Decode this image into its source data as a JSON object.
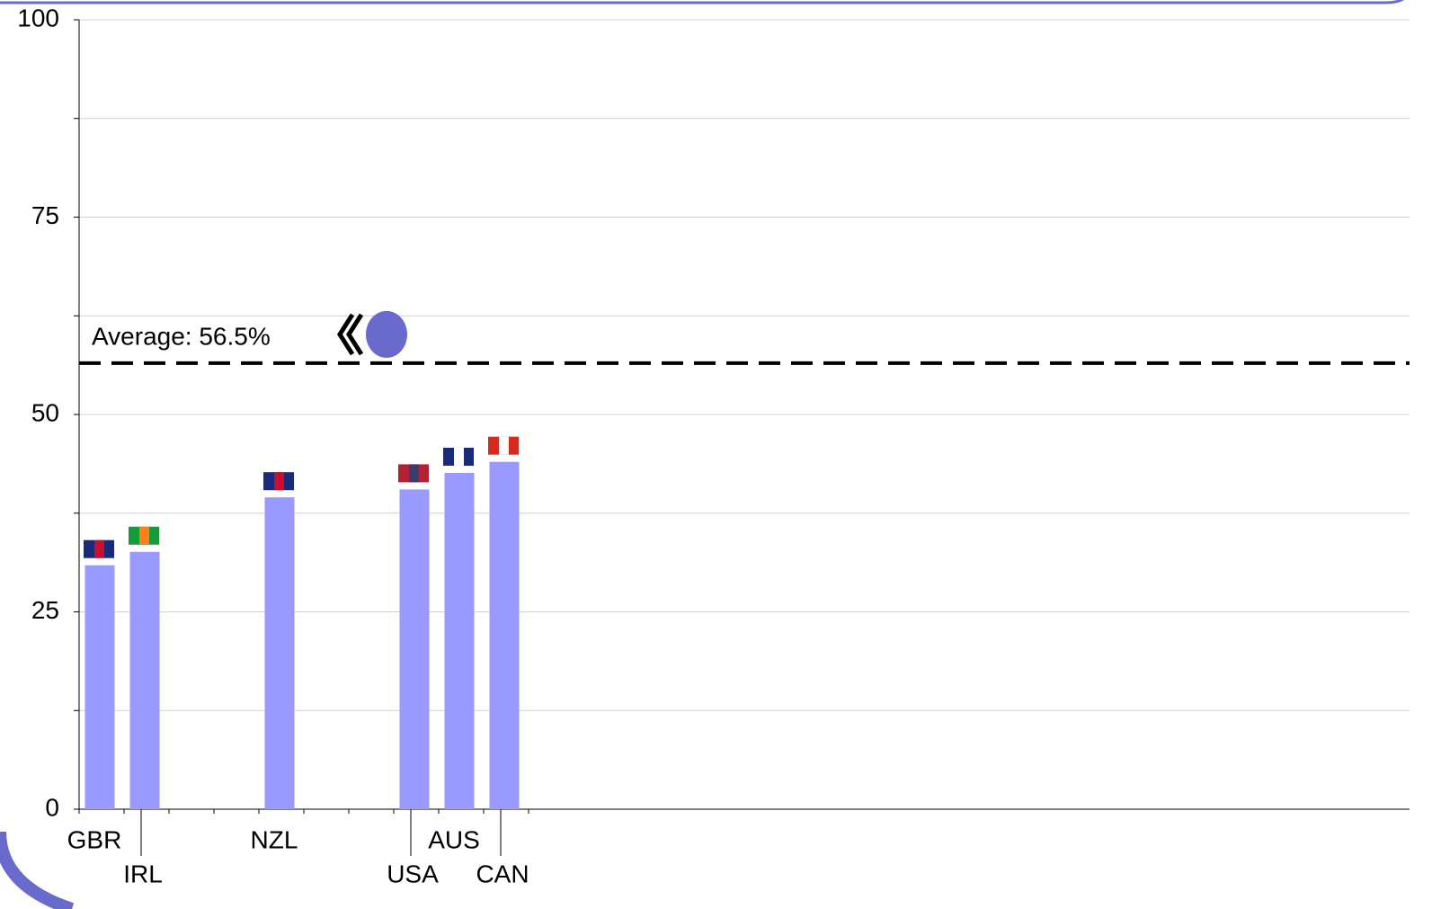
{
  "chart_data": {
    "type": "bar",
    "categories": [
      "GBR",
      "IRL",
      null,
      null,
      "NZL",
      null,
      null,
      "USA",
      "AUS",
      "CAN"
    ],
    "values": [
      30.9,
      32.6,
      null,
      null,
      39.5,
      null,
      null,
      40.5,
      42.6,
      44.0
    ],
    "color": "#9999ff",
    "ylim": [
      0,
      100
    ],
    "yticks": [
      0,
      25,
      50,
      75,
      100
    ],
    "minor_yticks": [
      12.5,
      37.5,
      62.5,
      87.5
    ],
    "grid": true,
    "average": {
      "value": 56.5,
      "label": "Average: 56.5%"
    }
  }
}
